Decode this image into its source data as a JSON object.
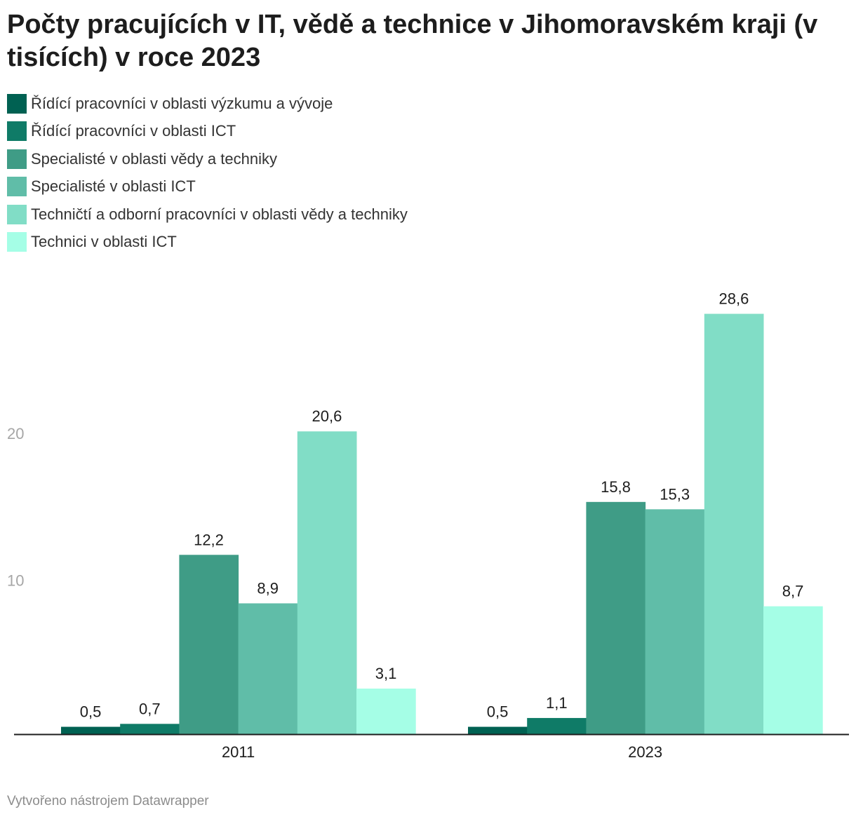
{
  "title": "Počty pracujících v IT, vědě a technice v Jihomoravském kraji (v tisících) v roce 2023",
  "footer": "Vytvořeno nástrojem Datawrapper",
  "chart_data": {
    "type": "bar",
    "categories": [
      "2011",
      "2023"
    ],
    "series": [
      {
        "name": "Řídící pracovníci v oblasti výzkumu a vývoje",
        "color": "#006152",
        "values": [
          0.5,
          0.5
        ],
        "labels": [
          "0,5",
          "0,5"
        ]
      },
      {
        "name": "Řídící pracovníci v oblasti ICT",
        "color": "#0f7b67",
        "values": [
          0.7,
          1.1
        ],
        "labels": [
          "0,7",
          "1,1"
        ]
      },
      {
        "name": "Specialisté v oblasti vědy a techniky",
        "color": "#3f9c86",
        "values": [
          12.2,
          15.8
        ],
        "labels": [
          "12,2",
          "15,8"
        ]
      },
      {
        "name": "Specialisté v oblasti ICT",
        "color": "#60bda8",
        "values": [
          8.9,
          15.3
        ],
        "labels": [
          "8,9",
          "15,3"
        ]
      },
      {
        "name": "Techničtí a odborní pracovníci v oblasti vědy a techniky",
        "color": "#81ddc6",
        "values": [
          20.6,
          28.6
        ],
        "labels": [
          "20,6",
          "28,6"
        ]
      },
      {
        "name": "Technici v oblasti ICT",
        "color": "#a5fee6",
        "values": [
          3.1,
          8.7
        ],
        "labels": [
          "3,1",
          "8,7"
        ]
      }
    ],
    "yticks": [
      10,
      20
    ],
    "ylim": [
      0,
      28.6
    ],
    "grid": false,
    "legend": "top"
  }
}
